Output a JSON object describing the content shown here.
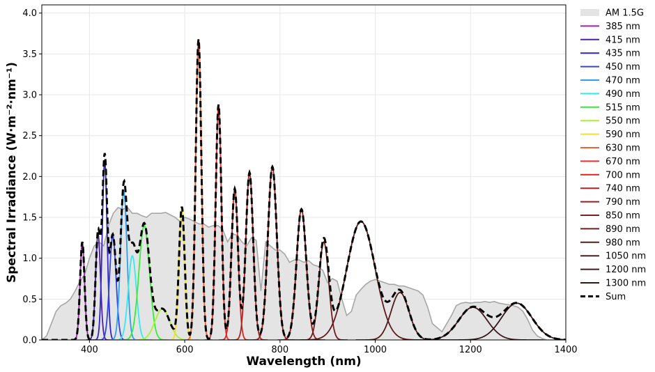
{
  "chart_data": {
    "type": "line",
    "title": "",
    "xlabel": "Wavelength (nm)",
    "ylabel": "Spectral Irradiance (W·m⁻²·nm⁻¹)",
    "xlim": [
      300,
      1400
    ],
    "ylim": [
      0,
      4.1
    ],
    "x_ticks": [
      400,
      600,
      800,
      1000,
      1200,
      1400
    ],
    "y_ticks": [
      0.0,
      0.5,
      1.0,
      1.5,
      2.0,
      2.5,
      3.0,
      3.5,
      4.0
    ],
    "x_tick_labels": [
      "400",
      "600",
      "800",
      "1000",
      "1200",
      "1400"
    ],
    "y_tick_labels": [
      "0.0",
      "0.5",
      "1.0",
      "1.5",
      "2.0",
      "2.5",
      "3.0",
      "3.5",
      "4.0"
    ],
    "grid": true,
    "legend_position": "outside-right",
    "reference": {
      "name": "AM 1.5G",
      "fill": "#e4e4e4",
      "line": "#a6a6a6",
      "points": [
        [
          300,
          0
        ],
        [
          310,
          0.05
        ],
        [
          320,
          0.2
        ],
        [
          330,
          0.35
        ],
        [
          340,
          0.42
        ],
        [
          350,
          0.45
        ],
        [
          360,
          0.5
        ],
        [
          370,
          0.6
        ],
        [
          380,
          0.72
        ],
        [
          390,
          0.8
        ],
        [
          400,
          1.0
        ],
        [
          410,
          1.15
        ],
        [
          420,
          1.2
        ],
        [
          430,
          1.15
        ],
        [
          440,
          1.4
        ],
        [
          450,
          1.55
        ],
        [
          460,
          1.62
        ],
        [
          470,
          1.6
        ],
        [
          480,
          1.62
        ],
        [
          490,
          1.55
        ],
        [
          500,
          1.55
        ],
        [
          510,
          1.52
        ],
        [
          520,
          1.5
        ],
        [
          530,
          1.55
        ],
        [
          540,
          1.55
        ],
        [
          550,
          1.55
        ],
        [
          560,
          1.56
        ],
        [
          570,
          1.53
        ],
        [
          580,
          1.5
        ],
        [
          590,
          1.45
        ],
        [
          600,
          1.5
        ],
        [
          610,
          1.48
        ],
        [
          620,
          1.45
        ],
        [
          630,
          1.42
        ],
        [
          640,
          1.42
        ],
        [
          650,
          1.38
        ],
        [
          660,
          1.4
        ],
        [
          670,
          1.4
        ],
        [
          680,
          1.35
        ],
        [
          690,
          1.2
        ],
        [
          700,
          1.3
        ],
        [
          710,
          1.28
        ],
        [
          720,
          1.2
        ],
        [
          730,
          1.15
        ],
        [
          740,
          1.25
        ],
        [
          750,
          1.22
        ],
        [
          760,
          0.6
        ],
        [
          770,
          1.2
        ],
        [
          780,
          1.15
        ],
        [
          790,
          1.1
        ],
        [
          800,
          1.1
        ],
        [
          810,
          1.05
        ],
        [
          820,
          0.95
        ],
        [
          830,
          0.98
        ],
        [
          840,
          0.98
        ],
        [
          850,
          0.95
        ],
        [
          860,
          0.97
        ],
        [
          870,
          0.92
        ],
        [
          880,
          0.9
        ],
        [
          890,
          0.85
        ],
        [
          900,
          0.7
        ],
        [
          910,
          0.75
        ],
        [
          920,
          0.72
        ],
        [
          930,
          0.5
        ],
        [
          940,
          0.3
        ],
        [
          950,
          0.35
        ],
        [
          960,
          0.55
        ],
        [
          970,
          0.62
        ],
        [
          980,
          0.68
        ],
        [
          990,
          0.72
        ],
        [
          1000,
          0.74
        ],
        [
          1010,
          0.72
        ],
        [
          1020,
          0.7
        ],
        [
          1030,
          0.68
        ],
        [
          1040,
          0.68
        ],
        [
          1050,
          0.66
        ],
        [
          1060,
          0.66
        ],
        [
          1070,
          0.64
        ],
        [
          1080,
          0.62
        ],
        [
          1090,
          0.6
        ],
        [
          1100,
          0.55
        ],
        [
          1110,
          0.4
        ],
        [
          1120,
          0.2
        ],
        [
          1130,
          0.15
        ],
        [
          1140,
          0.1
        ],
        [
          1150,
          0.2
        ],
        [
          1160,
          0.3
        ],
        [
          1170,
          0.42
        ],
        [
          1180,
          0.45
        ],
        [
          1190,
          0.46
        ],
        [
          1200,
          0.45
        ],
        [
          1210,
          0.46
        ],
        [
          1220,
          0.46
        ],
        [
          1230,
          0.47
        ],
        [
          1240,
          0.46
        ],
        [
          1250,
          0.47
        ],
        [
          1260,
          0.45
        ],
        [
          1270,
          0.44
        ],
        [
          1280,
          0.43
        ],
        [
          1290,
          0.42
        ],
        [
          1300,
          0.4
        ],
        [
          1310,
          0.35
        ],
        [
          1320,
          0.25
        ],
        [
          1330,
          0.12
        ],
        [
          1340,
          0.05
        ],
        [
          1350,
          0.02
        ],
        [
          1360,
          0
        ],
        [
          1400,
          0
        ]
      ]
    },
    "series": [
      {
        "name": "385 nm",
        "color": "#a020b0",
        "center": 385,
        "peak": 1.2,
        "fwhm": 11
      },
      {
        "name": "415 nm",
        "color": "#4b1fa8",
        "center": 418,
        "peak": 1.3,
        "fwhm": 12
      },
      {
        "name": "435 nm",
        "color": "#3322cc",
        "center": 432,
        "peak": 2.2,
        "fwhm": 12
      },
      {
        "name": "450 nm",
        "color": "#2f46e6",
        "center": 449,
        "peak": 1.28,
        "fwhm": 16
      },
      {
        "name": "470 nm",
        "color": "#2aa0ee",
        "center": 472,
        "peak": 1.82,
        "fwhm": 16
      },
      {
        "name": "490 nm",
        "color": "#33eaf0",
        "center": 490,
        "peak": 1.03,
        "fwhm": 20
      },
      {
        "name": "515 nm",
        "color": "#33ee33",
        "center": 515,
        "peak": 1.4,
        "fwhm": 26
      },
      {
        "name": "550 nm",
        "color": "#aaf033",
        "center": 553,
        "peak": 0.38,
        "fwhm": 36
      },
      {
        "name": "590 nm",
        "color": "#f0e030",
        "center": 594,
        "peak": 1.62,
        "fwhm": 14
      },
      {
        "name": "630 nm",
        "color": "#f06030",
        "center": 629,
        "peak": 3.68,
        "fwhm": 14
      },
      {
        "name": "670 nm",
        "color": "#ee2a2a",
        "center": 671,
        "peak": 2.88,
        "fwhm": 14
      },
      {
        "name": "700 nm",
        "color": "#dd2222",
        "center": 705,
        "peak": 1.85,
        "fwhm": 16
      },
      {
        "name": "740 nm",
        "color": "#b52020",
        "center": 736,
        "peak": 2.05,
        "fwhm": 18
      },
      {
        "name": "790 nm",
        "color": "#9a1c1c",
        "center": 784,
        "peak": 2.12,
        "fwhm": 22
      },
      {
        "name": "850 nm",
        "color": "#841c1c",
        "center": 845,
        "peak": 1.6,
        "fwhm": 24
      },
      {
        "name": "890 nm",
        "color": "#701c1c",
        "center": 892,
        "peak": 1.2,
        "fwhm": 24
      },
      {
        "name": "980 nm",
        "color": "#5e1a1a",
        "center": 970,
        "peak": 1.45,
        "fwhm": 70
      },
      {
        "name": "1050 nm",
        "color": "#4e1a1a",
        "center": 1052,
        "peak": 0.58,
        "fwhm": 44
      },
      {
        "name": "1200 nm",
        "color": "#3e1a1a",
        "center": 1205,
        "peak": 0.4,
        "fwhm": 70
      },
      {
        "name": "1300 nm",
        "color": "#301616",
        "center": 1297,
        "peak": 0.45,
        "fwhm": 75
      }
    ],
    "sum": {
      "name": "Sum",
      "color": "#000000"
    }
  }
}
